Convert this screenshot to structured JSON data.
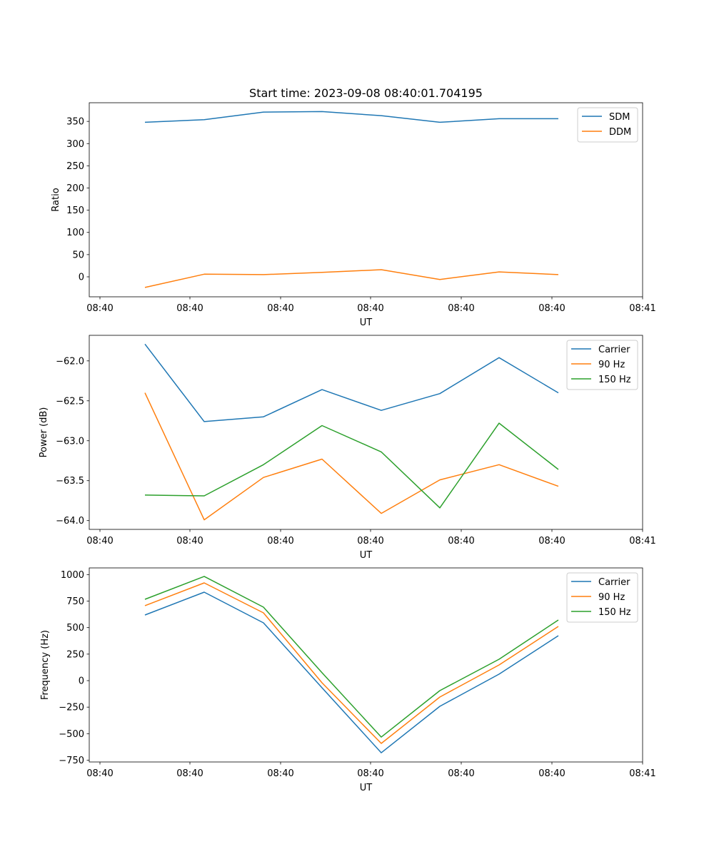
{
  "chart_data": [
    {
      "type": "line",
      "title": "Start time: 2023-09-08 08:40:01.704195",
      "xlabel": "UT",
      "ylabel": "Ratio",
      "x_tick_labels": [
        "08:40",
        "08:40",
        "08:40",
        "08:40",
        "08:40",
        "08:40",
        "08:41"
      ],
      "y_ticks": [
        0,
        50,
        100,
        150,
        200,
        250,
        300,
        350
      ],
      "y_tick_labels": [
        "0",
        "50",
        "100",
        "150",
        "200",
        "250",
        "300",
        "350"
      ],
      "ylim": [
        -45,
        392
      ],
      "legend": "top-right",
      "series": [
        {
          "name": "SDM",
          "color": "#1f77b4",
          "values": [
            348,
            354,
            371,
            372,
            363,
            348,
            356,
            356
          ]
        },
        {
          "name": "DDM",
          "color": "#ff7f0e",
          "values": [
            -24,
            6,
            5,
            10,
            16,
            -6,
            11,
            5
          ]
        }
      ]
    },
    {
      "type": "line",
      "title": "",
      "xlabel": "UT",
      "ylabel": "Power (dB)",
      "x_tick_labels": [
        "08:40",
        "08:40",
        "08:40",
        "08:40",
        "08:40",
        "08:40",
        "08:41"
      ],
      "y_ticks": [
        -64.0,
        -63.5,
        -63.0,
        -62.5,
        -62.0
      ],
      "y_tick_labels": [
        "−64.0",
        "−63.5",
        "−63.0",
        "−62.5",
        "−62.0"
      ],
      "ylim": [
        -64.11,
        -61.68
      ],
      "legend": "top-right",
      "series": [
        {
          "name": "Carrier",
          "color": "#1f77b4",
          "values": [
            -61.79,
            -62.76,
            -62.7,
            -62.36,
            -62.62,
            -62.41,
            -61.96,
            -62.4
          ]
        },
        {
          "name": "90 Hz",
          "color": "#ff7f0e",
          "values": [
            -62.4,
            -63.99,
            -63.46,
            -63.23,
            -63.91,
            -63.49,
            -63.3,
            -63.57
          ]
        },
        {
          "name": "150 Hz",
          "color": "#2ca02c",
          "values": [
            -63.68,
            -63.69,
            -63.3,
            -62.81,
            -63.14,
            -63.84,
            -62.78,
            -63.36
          ]
        }
      ]
    },
    {
      "type": "line",
      "title": "",
      "xlabel": "UT",
      "ylabel": "Frequency (Hz)",
      "x_tick_labels": [
        "08:40",
        "08:40",
        "08:40",
        "08:40",
        "08:40",
        "08:40",
        "08:41"
      ],
      "y_ticks": [
        -750,
        -500,
        -250,
        0,
        250,
        500,
        750,
        1000
      ],
      "y_tick_labels": [
        "−750",
        "−500",
        "−250",
        "0",
        "250",
        "500",
        "750",
        "1000"
      ],
      "ylim": [
        -767,
        1063
      ],
      "legend": "top-right",
      "series": [
        {
          "name": "Carrier",
          "color": "#1f77b4",
          "values": [
            619,
            834,
            545,
            -67,
            -680,
            -242,
            61,
            424
          ]
        },
        {
          "name": "90 Hz",
          "color": "#ff7f0e",
          "values": [
            707,
            922,
            639,
            -20,
            -592,
            -155,
            148,
            511
          ]
        },
        {
          "name": "150 Hz",
          "color": "#2ca02c",
          "values": [
            767,
            983,
            693,
            75,
            -532,
            -94,
            202,
            572
          ]
        }
      ]
    }
  ]
}
